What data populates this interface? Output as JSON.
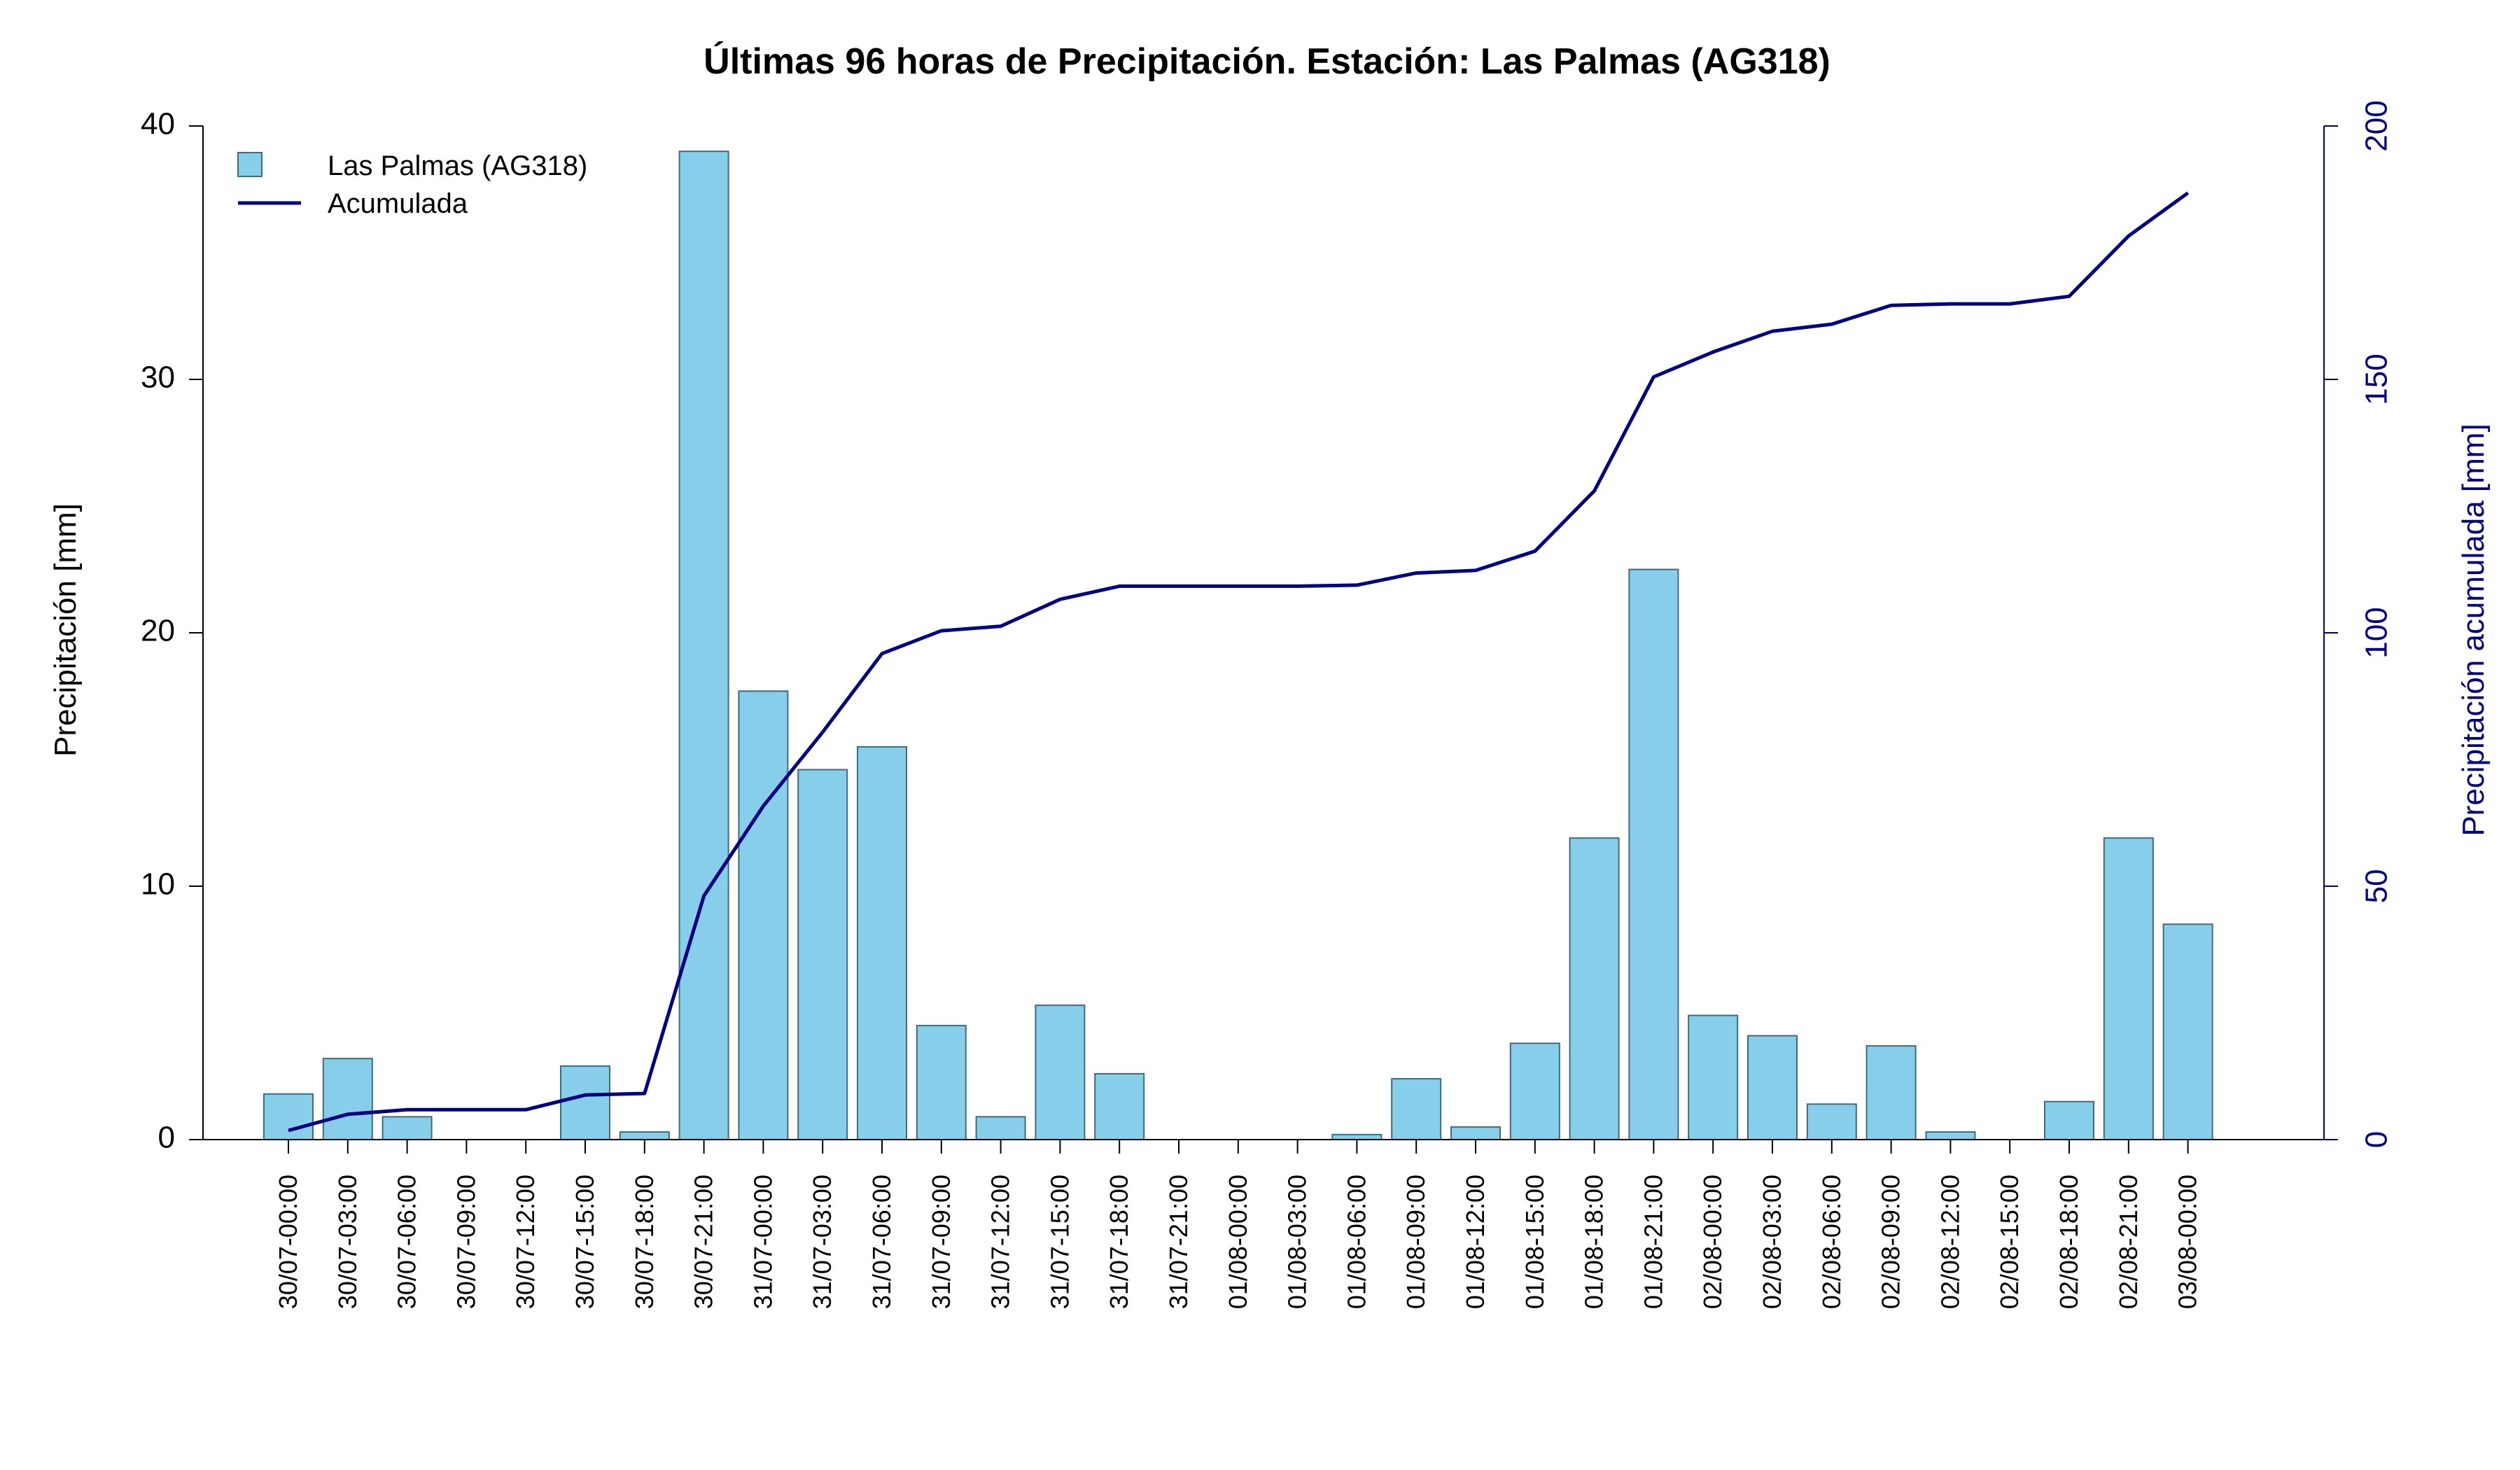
{
  "chart_data": {
    "type": "bar",
    "title": "Últimas 96 horas de Precipitación. Estación: Las Palmas (AG318)",
    "ylabel": "Precipitación [mm]",
    "y2label": "Precipitación acumulada [mm]",
    "ylim": [
      0,
      40
    ],
    "y2lim": [
      0,
      200
    ],
    "yticks": [
      "0",
      "10",
      "20",
      "30",
      "40"
    ],
    "y2ticks": [
      "0",
      "50",
      "100",
      "150",
      "200"
    ],
    "categories": [
      "30/07-00:00",
      "30/07-03:00",
      "30/07-06:00",
      "30/07-09:00",
      "30/07-12:00",
      "30/07-15:00",
      "30/07-18:00",
      "30/07-21:00",
      "31/07-00:00",
      "31/07-03:00",
      "31/07-06:00",
      "31/07-09:00",
      "31/07-12:00",
      "31/07-15:00",
      "31/07-18:00",
      "31/07-21:00",
      "01/08-00:00",
      "01/08-03:00",
      "01/08-06:00",
      "01/08-09:00",
      "01/08-12:00",
      "01/08-15:00",
      "01/08-18:00",
      "01/08-21:00",
      "02/08-00:00",
      "02/08-03:00",
      "02/08-06:00",
      "02/08-09:00",
      "02/08-12:00",
      "02/08-15:00",
      "02/08-18:00",
      "02/08-21:00",
      "03/08-00:00"
    ],
    "series": [
      {
        "name": "Las Palmas (AG318)",
        "type": "bar",
        "axis": "left",
        "color": "#87ceeb",
        "values": [
          1.8,
          3.2,
          0.9,
          0,
          0,
          2.9,
          0.3,
          39,
          17.7,
          14.6,
          15.5,
          4.5,
          0.9,
          5.3,
          2.6,
          0,
          0,
          0,
          0.2,
          2.4,
          0.5,
          3.8,
          11.9,
          22.5,
          4.9,
          4.1,
          1.4,
          3.7,
          0.3,
          0,
          1.5,
          11.9,
          8.5
        ]
      },
      {
        "name": "Acumulada",
        "type": "line",
        "axis": "right",
        "color": "#000080",
        "values": [
          1.8,
          5.0,
          5.9,
          5.9,
          5.9,
          8.8,
          9.1,
          48.1,
          65.8,
          80.4,
          95.9,
          100.4,
          101.3,
          106.6,
          109.2,
          109.2,
          109.2,
          109.2,
          109.4,
          111.8,
          112.3,
          116.1,
          128.0,
          150.5,
          155.4,
          159.5,
          160.9,
          164.6,
          164.9,
          164.9,
          166.4,
          178.3,
          186.8
        ]
      }
    ],
    "legend_position": "top-left",
    "grid": false
  }
}
